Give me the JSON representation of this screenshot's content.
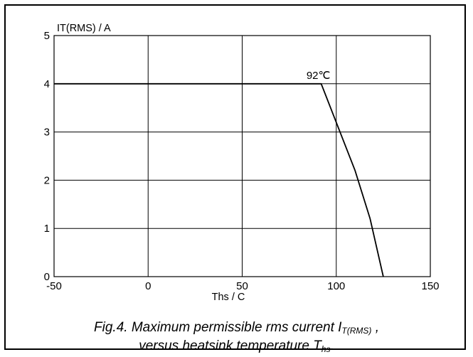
{
  "chart_data": {
    "type": "line",
    "xlabel": "Ths / C",
    "ylabel": "IT(RMS) / A",
    "xlim": [
      -50,
      150
    ],
    "ylim": [
      0,
      5
    ],
    "xticks": [
      -50,
      0,
      50,
      100,
      150
    ],
    "yticks": [
      0,
      1,
      2,
      3,
      4,
      5
    ],
    "grid": true,
    "series": [
      {
        "x": [
          -50,
          92,
          100,
          110,
          118,
          125
        ],
        "y": [
          4,
          4,
          3.2,
          2.2,
          1.2,
          0
        ]
      }
    ],
    "annotations": [
      {
        "text": "92℃",
        "x": 92,
        "y": 4
      }
    ]
  },
  "caption": {
    "line1_prefix": "Fig.4.  Maximum permissible rms current I",
    "line1_sub": "T(RMS)",
    "line1_suffix": " ,",
    "line2_prefix": "versus heatsink temperature T",
    "line2_sub": "hs",
    "line2_suffix": "."
  },
  "colors": {
    "line": "#000000",
    "grid": "#000000",
    "background": "#ffffff"
  }
}
